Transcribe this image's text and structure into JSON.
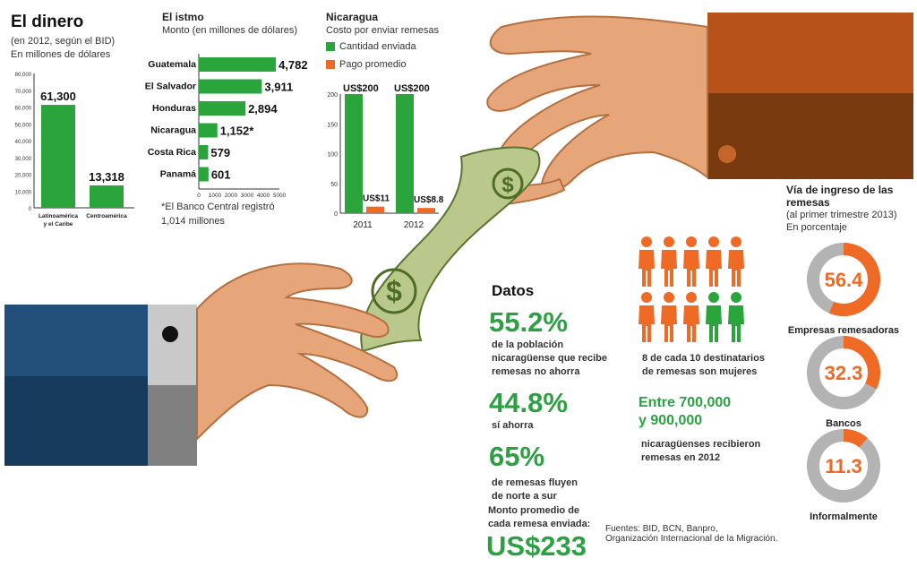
{
  "colors": {
    "green": "#2aa53c",
    "orange": "#ee6a25",
    "gray": "#b3b3b3",
    "brown": "#9a4a14",
    "navy": "#1c3a5c"
  },
  "dinero": {
    "title": "El dinero",
    "subtitle": "(en 2012, según el BID)",
    "unit": "En millones de dólares"
  },
  "istmo": {
    "title": "El istmo",
    "subtitle": "Monto (en millones de dólares)",
    "note_line1": "*El Banco Central registró",
    "note_line2": "1,014 millones"
  },
  "nicaragua": {
    "title": "Nicaragua",
    "subtitle": "Costo por enviar remesas"
  },
  "chart_data": [
    {
      "type": "bar",
      "categories": [
        "Latinoamérica y el Caribe",
        "Centroamérica"
      ],
      "values": [
        61300,
        13318
      ],
      "value_labels": [
        "61,300",
        "13,318"
      ],
      "yticks": [
        "0",
        "10,000",
        "20,000",
        "30,000",
        "40,000",
        "50,000",
        "60,000",
        "70,000",
        "80,000"
      ],
      "ylim": [
        0,
        80000
      ]
    },
    {
      "type": "bar",
      "orientation": "horizontal",
      "categories": [
        "Guatemala",
        "El Salvador",
        "Honduras",
        "Nicaragua",
        "Costa Rica",
        "Panamá"
      ],
      "values": [
        4782,
        3911,
        2894,
        1152,
        579,
        601
      ],
      "value_labels": [
        "4,782",
        "3,911",
        "2,894",
        "1,152*",
        "579",
        "601"
      ],
      "xticks": [
        "0",
        "1000",
        "2000",
        "3000",
        "4000",
        "5000"
      ],
      "xlim": [
        0,
        5000
      ]
    },
    {
      "type": "bar",
      "categories": [
        "2011",
        "2012"
      ],
      "series": [
        {
          "name": "Cantidad enviada",
          "values": [
            200,
            200
          ],
          "value_labels": [
            "US$200",
            "US$200"
          ]
        },
        {
          "name": "Pago promedio",
          "values": [
            11,
            8.8
          ],
          "value_labels": [
            "US$11",
            "US$8.8"
          ]
        }
      ],
      "yticks": [
        "0",
        "50",
        "100",
        "150",
        "200"
      ],
      "ylim": [
        0,
        200
      ]
    },
    {
      "type": "pie",
      "title": "Vía de ingreso de las remesas",
      "subtitle": "(al primer trimestre 2013)",
      "unit": "En porcentaje",
      "categories": [
        "Empresas remesadoras",
        "Bancos",
        "Informalmente"
      ],
      "values": [
        56.4,
        32.3,
        11.3
      ],
      "value_labels": [
        "56.4",
        "32.3",
        "11.3"
      ]
    }
  ],
  "datos": {
    "title": "Datos",
    "stat1": "55.2%",
    "stat1_text": [
      "de la población",
      "nicaragüense que recibe",
      "remesas no ahorra"
    ],
    "stat2": "44.8%",
    "stat2_text": [
      "sí ahorra"
    ],
    "stat3": "65%",
    "stat3_text": [
      "de remesas fluyen",
      "de norte a sur"
    ],
    "promedio_text": [
      "Monto promedio de",
      "cada remesa enviada:"
    ],
    "promedio_value": "US$233"
  },
  "mujeres": {
    "text": [
      "8 de cada 10 destinatarios",
      "de remesas son mujeres"
    ],
    "women": 8,
    "total": 10
  },
  "receptores": {
    "range": [
      "Entre 700,000",
      "y 900,000"
    ],
    "text": [
      "nicaragüenses recibieron",
      "remesas en 2012"
    ]
  },
  "fuentes": [
    "Fuentes: BID, BCN, Banpro,",
    "Organización Internacional de la Migración."
  ]
}
